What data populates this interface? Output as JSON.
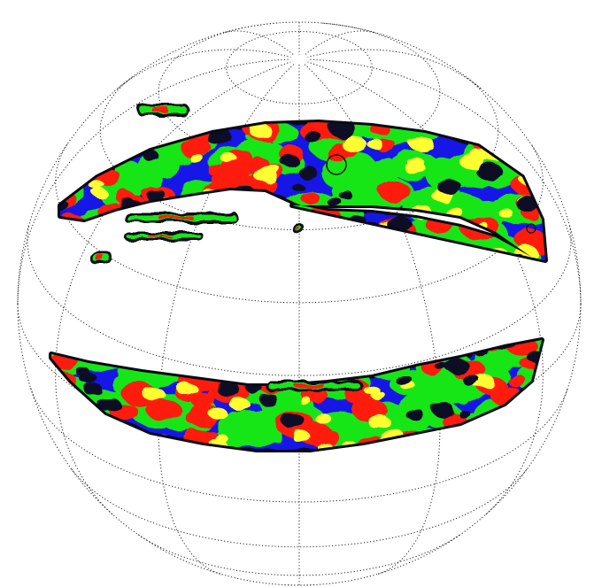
{
  "figure": {
    "kind": "orthographic sky projection",
    "graticule": {
      "style": "dotted",
      "color": "#222222",
      "latitude_step_deg": 15,
      "longitude_step_deg": 30
    },
    "colors": {
      "background": "#ffffff",
      "outline": "#0a0a14",
      "level_dark": "#0a0a28",
      "level_low": "#1414e6",
      "level_mid": "#19e619",
      "level_high": "#ff1a0d",
      "level_peak": "#ffff33"
    },
    "regions": [
      "northern-strip",
      "southern-strip",
      "small-northern-patches"
    ],
    "markers": [
      "circle-marker",
      "circle-marker-small"
    ]
  }
}
